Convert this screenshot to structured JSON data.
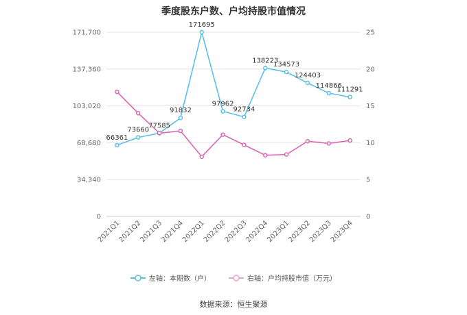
{
  "title": "季度股东户数、户均持股市值情况",
  "source": "数据来源：恒生聚源",
  "legend": {
    "left": "左轴：本期数（户）",
    "right": "右轴：户均持股市值（万元）"
  },
  "colors": {
    "left": "#5bc0e8",
    "right": "#d966b3",
    "grid": "#e6e6e6"
  },
  "chart_data": {
    "type": "line",
    "title": "季度股东户数、户均持股市值情况",
    "categories": [
      "2021Q1",
      "2021Q2",
      "2021Q3",
      "2021Q4",
      "2022Q1",
      "2022Q2",
      "2022Q3",
      "2022Q4",
      "2023Q1",
      "2023Q2",
      "2023Q3",
      "2023Q4"
    ],
    "left_axis": {
      "ticks": [
        0,
        34340,
        68680,
        103020,
        137360,
        171700
      ],
      "tick_labels": [
        "0",
        "34,340",
        "68,680",
        "103,020",
        "137,360",
        "171,700"
      ],
      "ylim": [
        0,
        171700
      ]
    },
    "right_axis": {
      "ticks": [
        0,
        5,
        10,
        15,
        20,
        25
      ],
      "tick_labels": [
        "0",
        "5",
        "10",
        "15",
        "20",
        "25"
      ],
      "ylim": [
        0,
        25
      ]
    },
    "series": [
      {
        "name": "左轴：本期数（户）",
        "axis": "left",
        "values": [
          66361,
          73660,
          77585,
          91832,
          171695,
          97962,
          92734,
          138223,
          134573,
          124403,
          114866,
          111291
        ],
        "labels": [
          "66361",
          "73660",
          "77585",
          "91832",
          "171695",
          "97962",
          "92734",
          "138223",
          "134573",
          "124403",
          "114866",
          "111291"
        ]
      },
      {
        "name": "右轴：户均持股市值（万元）",
        "axis": "right",
        "values": [
          16.9,
          14.0,
          11.3,
          11.6,
          8.1,
          11.1,
          9.7,
          8.3,
          8.4,
          10.2,
          9.9,
          10.3
        ]
      }
    ],
    "grid": true,
    "legend_position": "bottom"
  }
}
